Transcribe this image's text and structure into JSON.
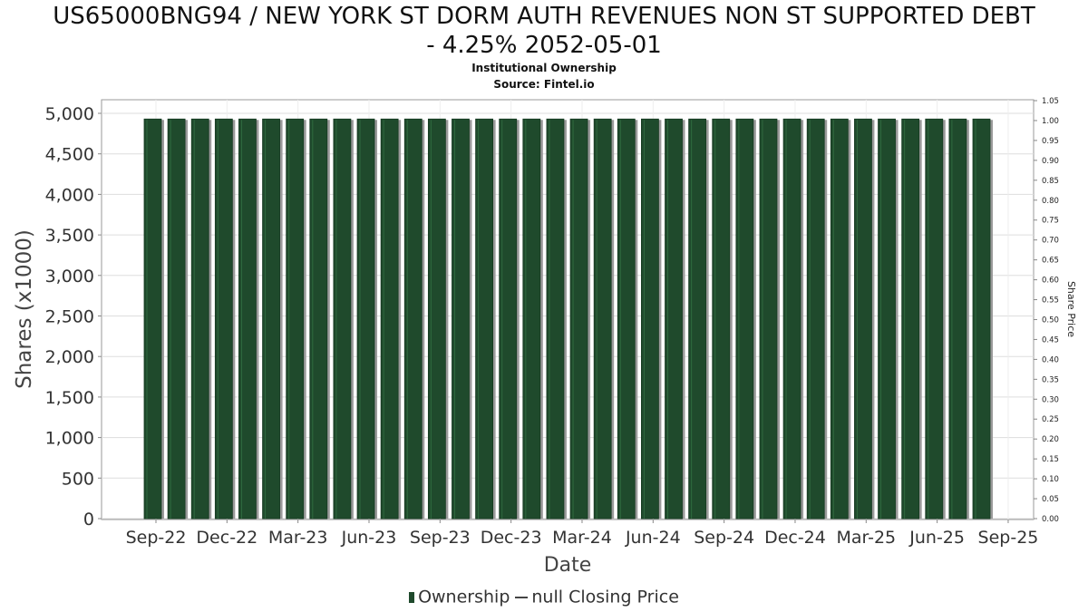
{
  "header": {
    "title_line1": "US65000BNG94 / NEW YORK ST DORM AUTH REVENUES NON ST SUPPORTED DEBT",
    "title_line2": "- 4.25% 2052-05-01",
    "subtitle": "Institutional Ownership",
    "source": "Source: Fintel.io"
  },
  "legend": {
    "ownership": "Ownership",
    "price": "null Closing Price"
  },
  "colors": {
    "bar": "#1f4a2c",
    "bar_shadow": "#9a9a9a",
    "grid": "#dddddd",
    "axis": "#888888"
  },
  "chart_data": {
    "type": "bar",
    "xlabel": "Date",
    "ylabel": "Shares (x1000)",
    "y2label": "Share Price",
    "ylim": [
      0,
      5200
    ],
    "y2lim": [
      0,
      1.05
    ],
    "yticks": [
      "0",
      "500",
      "1,000",
      "1,500",
      "2,000",
      "2,500",
      "3,000",
      "3,500",
      "4,000",
      "4,500",
      "5,000"
    ],
    "y2ticks": [
      "0.00",
      "0.05",
      "0.10",
      "0.15",
      "0.20",
      "0.25",
      "0.30",
      "0.35",
      "0.40",
      "0.45",
      "0.50",
      "0.55",
      "0.60",
      "0.65",
      "0.70",
      "0.75",
      "0.80",
      "0.85",
      "0.90",
      "0.95",
      "1.00",
      "1.05"
    ],
    "xticks": [
      "Sep-22",
      "Dec-22",
      "Mar-23",
      "Jun-23",
      "Sep-23",
      "Dec-23",
      "Mar-24",
      "Jun-24",
      "Sep-24",
      "Dec-24",
      "Mar-25",
      "Jun-25",
      "Sep-25"
    ],
    "series": [
      {
        "name": "Ownership",
        "values": [
          4930,
          4930,
          4930,
          4930,
          4930,
          4930,
          4930,
          4930,
          4930,
          4930,
          4930,
          4930,
          4930,
          4930,
          4930,
          4930,
          4930,
          4930,
          4930,
          4930,
          4930,
          4930,
          4930,
          4930,
          4930,
          4930,
          4930,
          4930,
          4930,
          4930,
          4930,
          4930,
          4930,
          4930,
          4930,
          4930
        ]
      }
    ],
    "grid": true,
    "legend_position": "bottom"
  }
}
